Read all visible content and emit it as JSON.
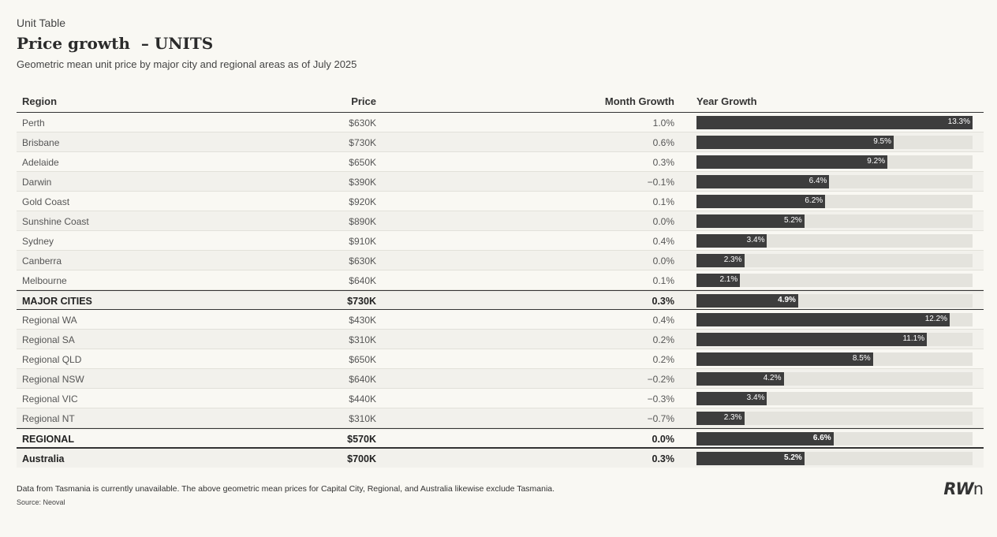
{
  "header": {
    "kicker": "Unit Table",
    "title": "Price growth  – UNITS",
    "subtitle": "Geometric mean unit price by major city and regional areas as of July 2025"
  },
  "columns": {
    "region": "Region",
    "price": "Price",
    "month": "Month Growth",
    "year": "Year Growth"
  },
  "bar_max": 13.3,
  "rows": [
    {
      "region": "Perth",
      "price": "$630K",
      "month": "1.0%",
      "year": "13.3%",
      "year_value": 13.3,
      "type": "normal"
    },
    {
      "region": "Brisbane",
      "price": "$730K",
      "month": "0.6%",
      "year": "9.5%",
      "year_value": 9.5,
      "type": "normal"
    },
    {
      "region": "Adelaide",
      "price": "$650K",
      "month": "0.3%",
      "year": "9.2%",
      "year_value": 9.2,
      "type": "normal"
    },
    {
      "region": "Darwin",
      "price": "$390K",
      "month": "−0.1%",
      "year": "6.4%",
      "year_value": 6.4,
      "type": "normal"
    },
    {
      "region": "Gold Coast",
      "price": "$920K",
      "month": "0.1%",
      "year": "6.2%",
      "year_value": 6.2,
      "type": "normal"
    },
    {
      "region": "Sunshine Coast",
      "price": "$890K",
      "month": "0.0%",
      "year": "5.2%",
      "year_value": 5.2,
      "type": "normal"
    },
    {
      "region": "Sydney",
      "price": "$910K",
      "month": "0.4%",
      "year": "3.4%",
      "year_value": 3.4,
      "type": "normal"
    },
    {
      "region": "Canberra",
      "price": "$630K",
      "month": "0.0%",
      "year": "2.3%",
      "year_value": 2.3,
      "type": "normal"
    },
    {
      "region": "Melbourne",
      "price": "$640K",
      "month": "0.1%",
      "year": "2.1%",
      "year_value": 2.1,
      "type": "normal"
    },
    {
      "region": "MAJOR CITIES",
      "price": "$730K",
      "month": "0.3%",
      "year": "4.9%",
      "year_value": 4.9,
      "type": "total"
    },
    {
      "region": "Regional WA",
      "price": "$430K",
      "month": "0.4%",
      "year": "12.2%",
      "year_value": 12.2,
      "type": "normal"
    },
    {
      "region": "Regional SA",
      "price": "$310K",
      "month": "0.2%",
      "year": "11.1%",
      "year_value": 11.1,
      "type": "normal"
    },
    {
      "region": "Regional QLD",
      "price": "$650K",
      "month": "0.2%",
      "year": "8.5%",
      "year_value": 8.5,
      "type": "normal"
    },
    {
      "region": "Regional NSW",
      "price": "$640K",
      "month": "−0.2%",
      "year": "4.2%",
      "year_value": 4.2,
      "type": "normal"
    },
    {
      "region": "Regional VIC",
      "price": "$440K",
      "month": "−0.3%",
      "year": "3.4%",
      "year_value": 3.4,
      "type": "normal"
    },
    {
      "region": "Regional NT",
      "price": "$310K",
      "month": "−0.7%",
      "year": "2.3%",
      "year_value": 2.3,
      "type": "normal"
    },
    {
      "region": "REGIONAL",
      "price": "$570K",
      "month": "0.0%",
      "year": "6.6%",
      "year_value": 6.6,
      "type": "total"
    },
    {
      "region": "Australia",
      "price": "$700K",
      "month": "0.3%",
      "year": "5.2%",
      "year_value": 5.2,
      "type": "final"
    }
  ],
  "footer": {
    "note": "Data from Tasmania is currently unavailable. The above geometric mean prices for Capital City, Regional, and Australia likewise exclude Tasmania.",
    "source": "Source: Neoval"
  },
  "logo": {
    "text_a": "RW",
    "text_b": "n"
  },
  "colors": {
    "bar": "#3d3d3d",
    "track": "#e4e3dd",
    "background": "#f9f8f3"
  }
}
